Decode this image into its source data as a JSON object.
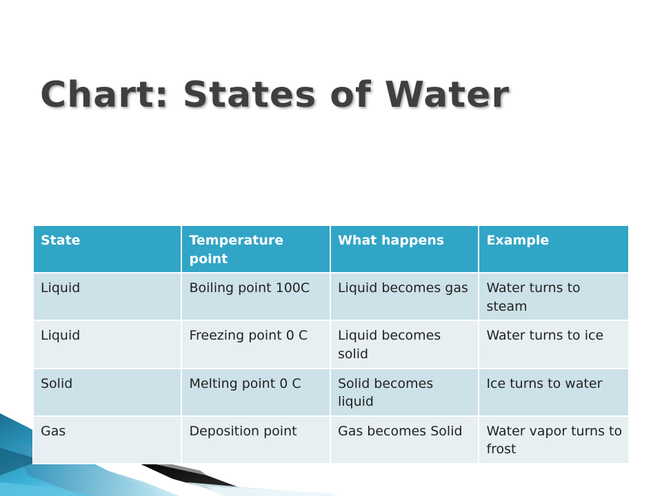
{
  "slide": {
    "title": "Chart: States of Water"
  },
  "table": {
    "headers": [
      "State",
      "Temperature point",
      "What happens",
      "Example"
    ],
    "rows": [
      [
        "Liquid",
        "Boiling point 100C",
        "Liquid becomes gas",
        "Water turns to steam"
      ],
      [
        "Liquid",
        "Freezing point 0 C",
        "Liquid becomes solid",
        "Water turns to ice"
      ],
      [
        "Solid",
        "Melting point 0 C",
        "Solid becomes liquid",
        "Ice turns to water"
      ],
      [
        "Gas",
        "Deposition point",
        "Gas becomes Solid",
        "Water vapor turns to frost"
      ]
    ]
  },
  "colors": {
    "header_bg": "#31a5c6",
    "row_dark_bg": "#cce1e8",
    "row_light_bg": "#e7eff2",
    "title_color": "#3f3f3f",
    "accent_blue": "#2a9fc4"
  }
}
